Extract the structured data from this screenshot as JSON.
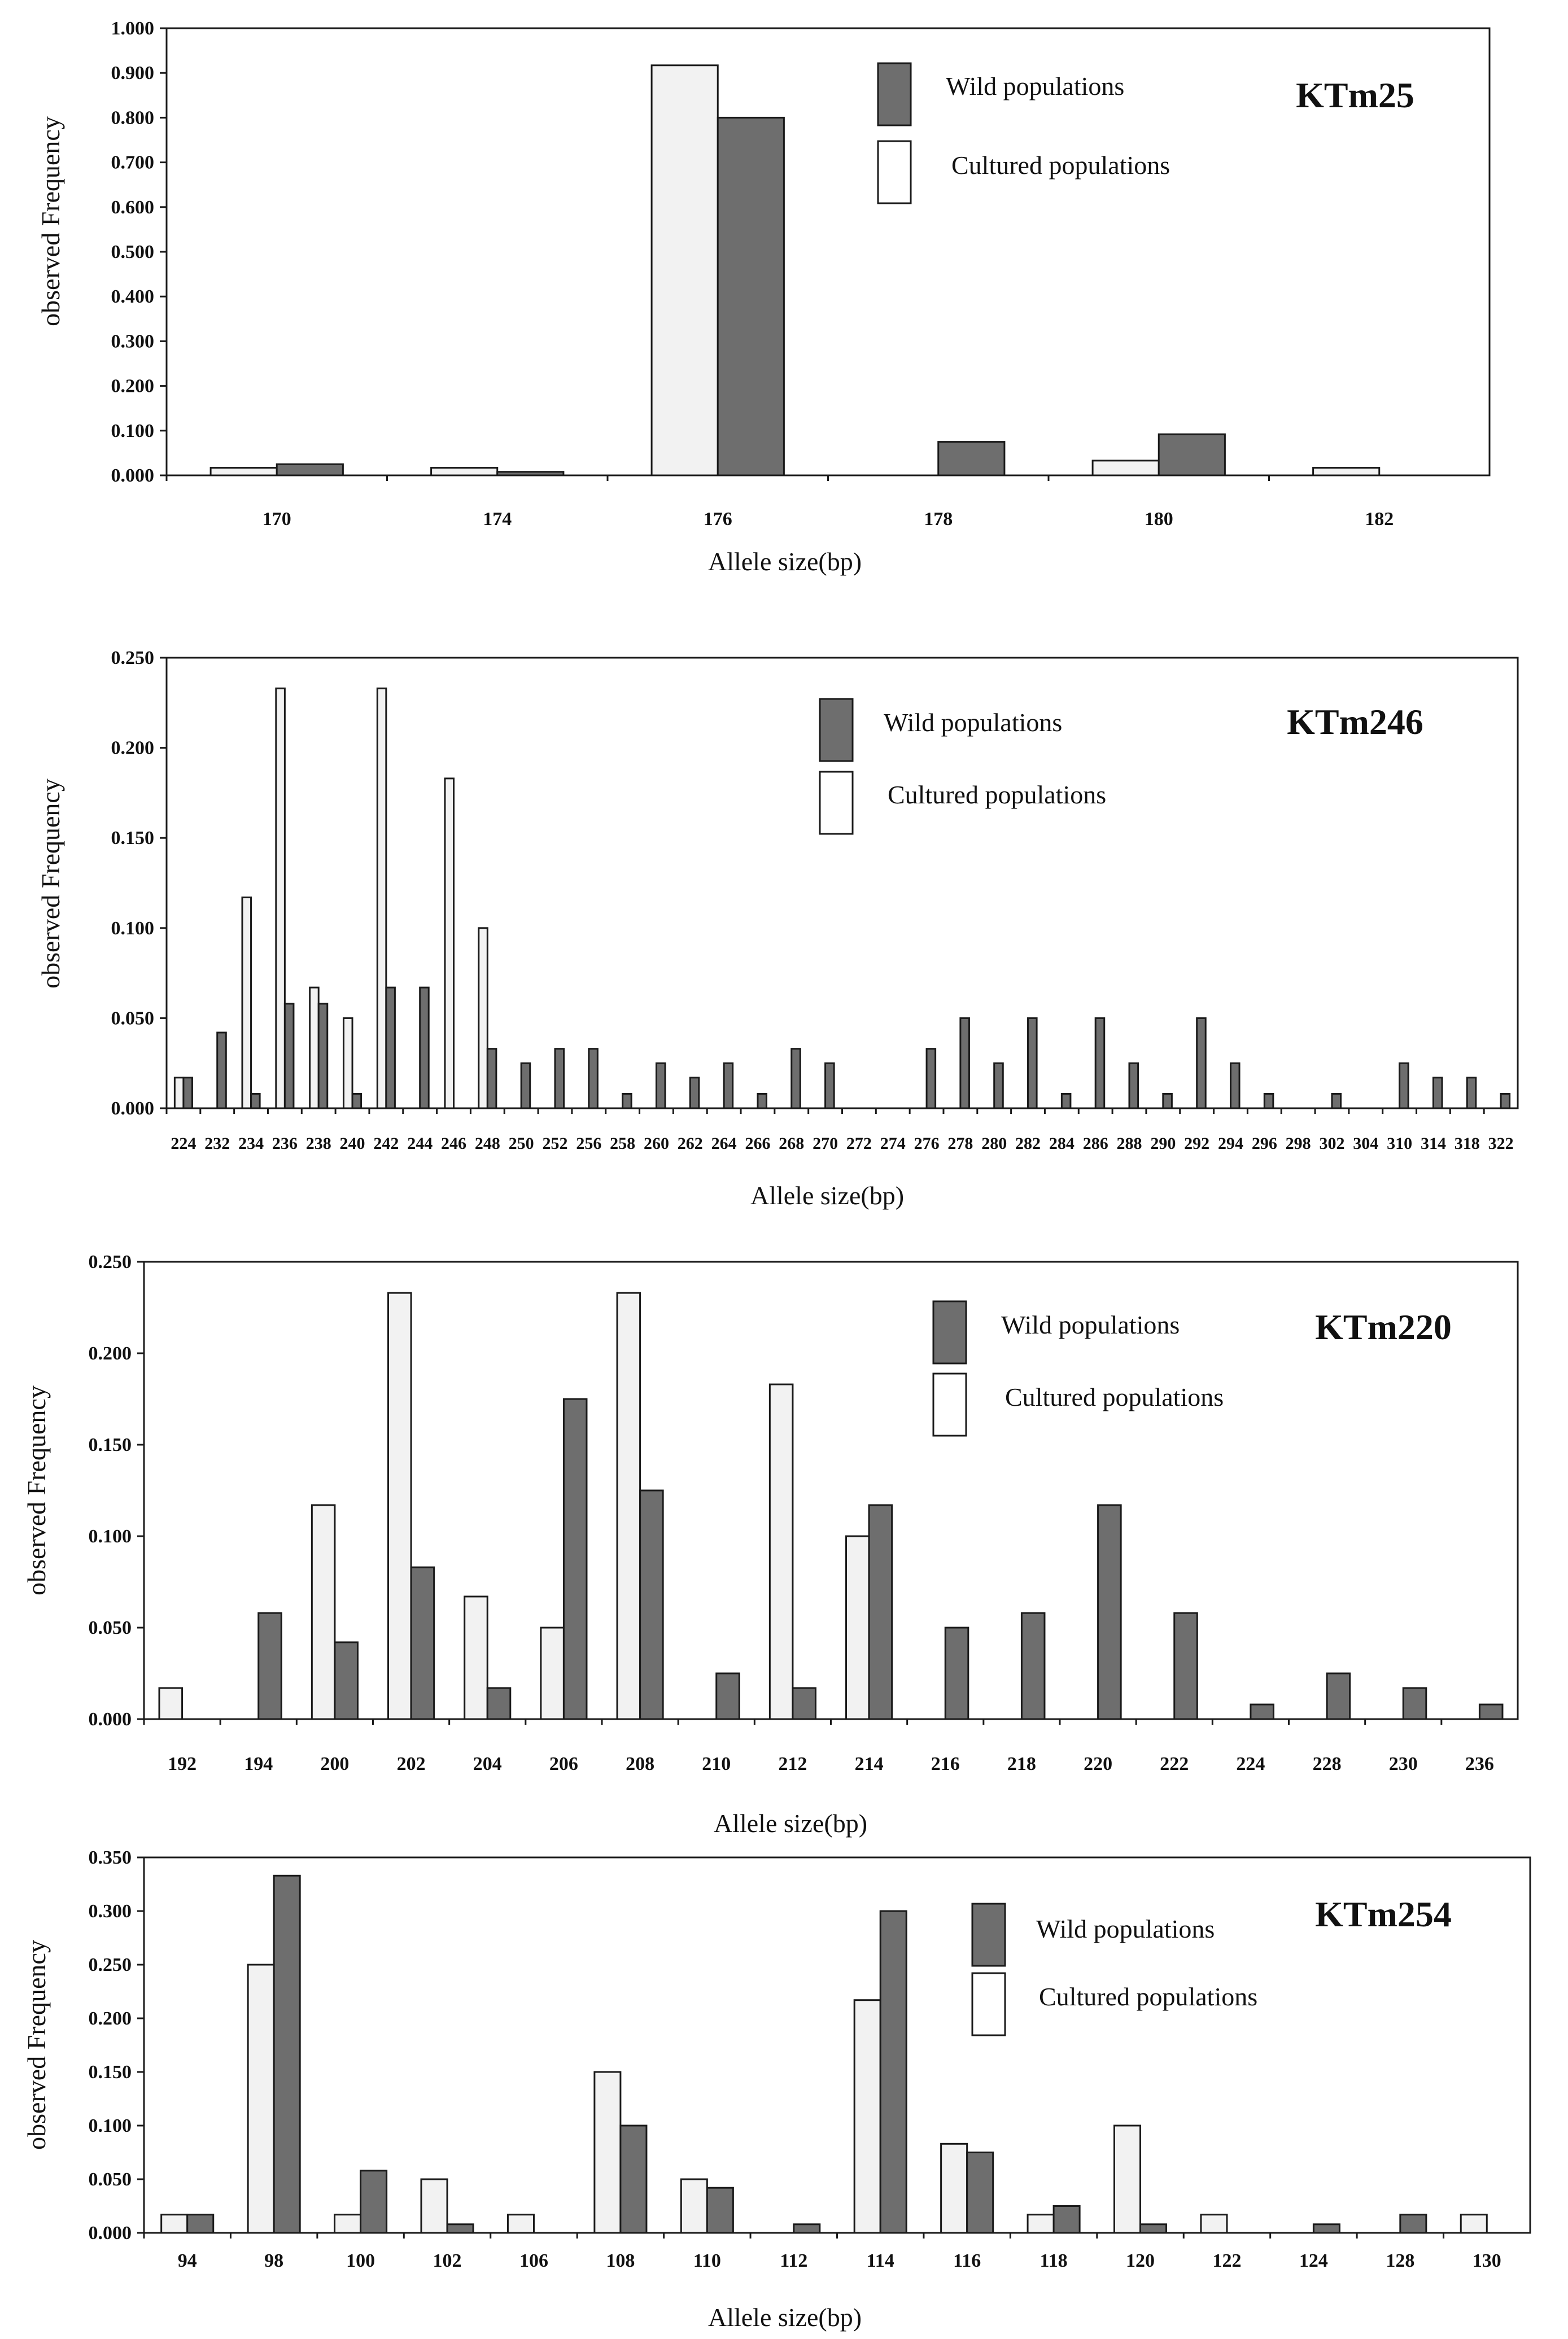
{
  "colors": {
    "wild": "#6e6e6e",
    "cultured": "#f2f2f2",
    "stroke": "#1a1a1a",
    "background": "#ffffff"
  },
  "legend": {
    "wild": "Wild populations",
    "cultured": "Cultured populations"
  },
  "chart_data": [
    {
      "type": "bar",
      "title": "KTm25",
      "xlabel": "Allele size(bp)",
      "ylabel": "observed Frequency",
      "ylim": [
        0,
        1.0
      ],
      "yticks": [
        "0.000",
        "0.100",
        "0.200",
        "0.300",
        "0.400",
        "0.500",
        "0.600",
        "0.700",
        "0.800",
        "0.900",
        "1.000"
      ],
      "categories": [
        "170",
        "174",
        "176",
        "178",
        "180",
        "182"
      ],
      "series": [
        {
          "name": "Cultured populations",
          "values": [
            0.017,
            0.017,
            0.917,
            0.0,
            0.033,
            0.017
          ]
        },
        {
          "name": "Wild populations",
          "values": [
            0.025,
            0.008,
            0.8,
            0.075,
            0.092,
            0.0
          ]
        }
      ]
    },
    {
      "type": "bar",
      "title": "KTm246",
      "xlabel": "Allele size(bp)",
      "ylabel": "observed Frequency",
      "ylim": [
        0,
        0.25
      ],
      "yticks": [
        "0.000",
        "0.050",
        "0.100",
        "0.150",
        "0.200",
        "0.250"
      ],
      "categories": [
        "224",
        "232",
        "234",
        "236",
        "238",
        "240",
        "242",
        "244",
        "246",
        "248",
        "250",
        "252",
        "256",
        "258",
        "260",
        "262",
        "264",
        "266",
        "268",
        "270",
        "272",
        "274",
        "276",
        "278",
        "280",
        "282",
        "284",
        "286",
        "288",
        "290",
        "292",
        "294",
        "296",
        "298",
        "302",
        "304",
        "310",
        "314",
        "318",
        "322"
      ],
      "series": [
        {
          "name": "Cultured populations",
          "values": [
            0.017,
            0,
            0.117,
            0.233,
            0.067,
            0.05,
            0.233,
            0,
            0.183,
            0.1,
            0,
            0,
            0,
            0,
            0,
            0,
            0,
            0,
            0,
            0,
            0,
            0,
            0,
            0,
            0,
            0,
            0,
            0,
            0,
            0,
            0,
            0,
            0,
            0,
            0,
            0,
            0,
            0,
            0,
            0
          ]
        },
        {
          "name": "Wild populations",
          "values": [
            0.017,
            0.042,
            0.008,
            0.058,
            0.058,
            0.008,
            0.067,
            0.067,
            0,
            0.033,
            0.025,
            0.033,
            0.033,
            0.008,
            0.025,
            0.017,
            0.025,
            0.008,
            0.033,
            0.025,
            0,
            0,
            0.033,
            0.05,
            0.025,
            0.05,
            0.008,
            0.05,
            0.025,
            0.008,
            0.05,
            0.025,
            0.008,
            0,
            0.008,
            0,
            0.025,
            0.017,
            0.017,
            0.008
          ]
        }
      ]
    },
    {
      "type": "bar",
      "title": "KTm220",
      "xlabel": "Allele size(bp)",
      "ylabel": "observed Frequency",
      "ylim": [
        0,
        0.25
      ],
      "yticks": [
        "0.000",
        "0.050",
        "0.100",
        "0.150",
        "0.200",
        "0.250"
      ],
      "categories": [
        "192",
        "194",
        "200",
        "202",
        "204",
        "206",
        "208",
        "210",
        "212",
        "214",
        "216",
        "218",
        "220",
        "222",
        "224",
        "228",
        "230",
        "236"
      ],
      "series": [
        {
          "name": "Cultured populations",
          "values": [
            0.017,
            0,
            0.117,
            0.233,
            0.067,
            0.05,
            0.233,
            0,
            0.183,
            0.1,
            0,
            0,
            0,
            0,
            0,
            0,
            0,
            0
          ]
        },
        {
          "name": "Wild populations",
          "values": [
            0,
            0.058,
            0.042,
            0.083,
            0.017,
            0.175,
            0.125,
            0.025,
            0.017,
            0.117,
            0.05,
            0.058,
            0.117,
            0.058,
            0.008,
            0.025,
            0.017,
            0.008
          ]
        }
      ]
    },
    {
      "type": "bar",
      "title": "KTm254",
      "xlabel": "Allele size(bp)",
      "ylabel": "observed Frequency",
      "ylim": [
        0,
        0.35
      ],
      "yticks": [
        "0.000",
        "0.050",
        "0.100",
        "0.150",
        "0.200",
        "0.250",
        "0.300",
        "0.350"
      ],
      "categories": [
        "94",
        "98",
        "100",
        "102",
        "106",
        "108",
        "110",
        "112",
        "114",
        "116",
        "118",
        "120",
        "122",
        "124",
        "128",
        "130"
      ],
      "series": [
        {
          "name": "Cultured populations",
          "values": [
            0.017,
            0.25,
            0.017,
            0.05,
            0.017,
            0.15,
            0.05,
            0,
            0.217,
            0.083,
            0.017,
            0.1,
            0.017,
            0,
            0,
            0.017
          ]
        },
        {
          "name": "Wild populations",
          "values": [
            0.017,
            0.333,
            0.058,
            0.008,
            0,
            0.1,
            0.042,
            0.008,
            0.3,
            0.075,
            0.025,
            0.008,
            0,
            0.008,
            0.017,
            0
          ]
        }
      ]
    }
  ]
}
